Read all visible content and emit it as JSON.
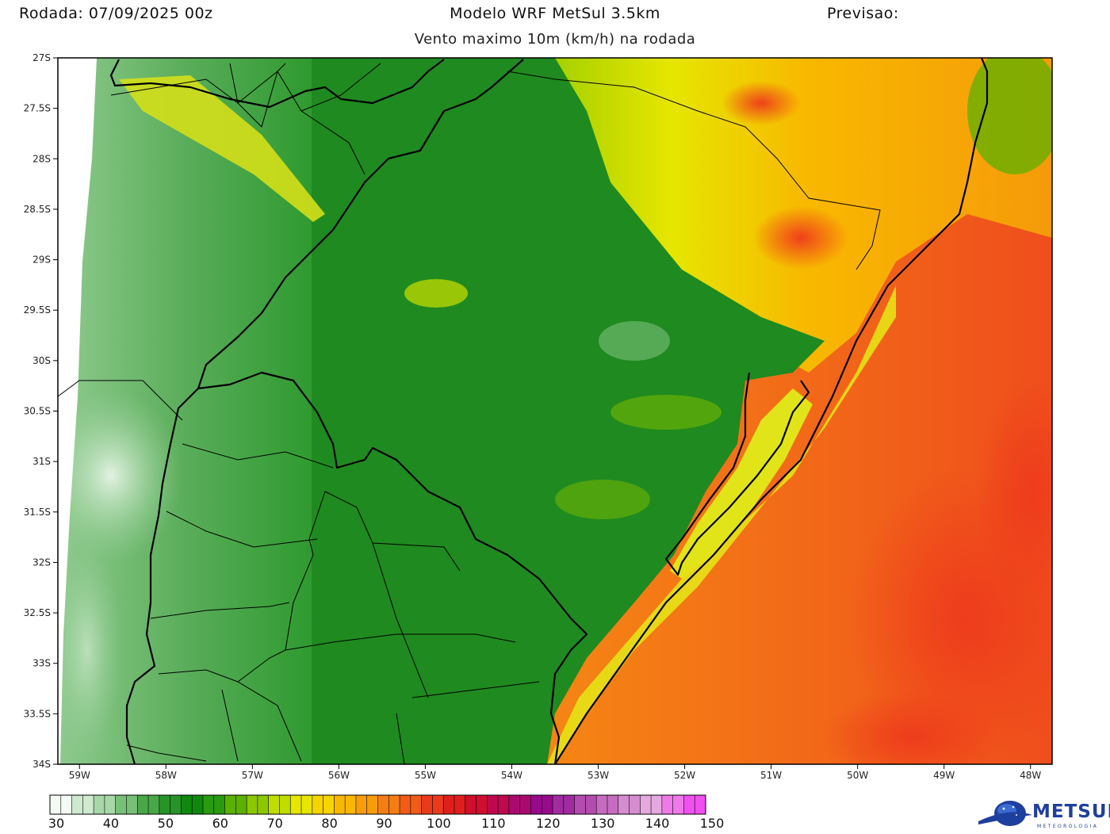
{
  "header": {
    "run_label": "Rodada: 07/09/2025 00z",
    "model_label": "Modelo WRF MetSul 3.5km",
    "forecast_label": "Previsao:",
    "subtitle": "Vento maximo 10m (km/h) na rodada"
  },
  "map": {
    "lon_range": [
      -59.25,
      -47.75
    ],
    "lat_range": [
      -34,
      -27
    ],
    "lat_ticks": [
      "27S",
      "27.5S",
      "28S",
      "28.5S",
      "29S",
      "29.5S",
      "30S",
      "30.5S",
      "31S",
      "31.5S",
      "32S",
      "32.5S",
      "33S",
      "33.5S",
      "34S"
    ],
    "lon_ticks": [
      "59W",
      "58W",
      "57W",
      "56W",
      "55W",
      "54W",
      "53W",
      "52W",
      "51W",
      "50W",
      "49W",
      "48W"
    ],
    "colors": {
      "land_low": "#3f9c3f",
      "land_mid": "#1f8a1f",
      "coast_yellow": "#d8e020",
      "ocean_orange": "#f38a1a",
      "ocean_red": "#f2431f",
      "border_line": "#000000"
    }
  },
  "colorbar": {
    "tick_labels": [
      "30",
      "40",
      "50",
      "60",
      "70",
      "80",
      "90",
      "100",
      "110",
      "120",
      "130",
      "140",
      "150"
    ],
    "min": 30,
    "max": 150,
    "colors": [
      "#f4fbf4",
      "#cfe9cf",
      "#a8d8a8",
      "#78c078",
      "#48a848",
      "#279427",
      "#108810",
      "#2a9a10",
      "#5cb000",
      "#8cc800",
      "#c0dc00",
      "#e6e600",
      "#f6d400",
      "#f8b800",
      "#f89c08",
      "#f47e14",
      "#f05c18",
      "#ea3a1c",
      "#e01e1e",
      "#d00e2e",
      "#c0084e",
      "#aa0a6e",
      "#980a8c",
      "#a02ca0",
      "#b44cb0",
      "#c66cc0",
      "#d68cd0",
      "#e4aae0",
      "#ee7ae8",
      "#f050f0"
    ]
  },
  "logo": {
    "name": "METSUL",
    "tagline": "METEOROLOGIA",
    "icon": "globe-swoosh-icon"
  }
}
